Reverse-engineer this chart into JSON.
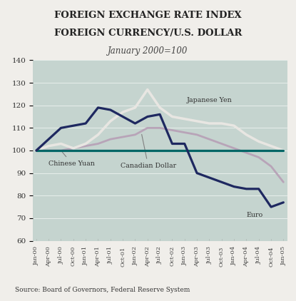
{
  "title_line1": "FOREIGN EXCHANGE RATE INDEX",
  "title_line2": "FOREIGN CURRENCY/U.S. DOLLAR",
  "subtitle": "January 2000=100",
  "source": "Source: Board of Governors, Federal Reserve System",
  "fig_bg": "#f0eeea",
  "plot_bg": "#c5d4cf",
  "ylim": [
    60,
    140
  ],
  "yticks": [
    60,
    70,
    80,
    90,
    100,
    110,
    120,
    130,
    140
  ],
  "xtick_labels": [
    "Jan-00",
    "Apr-00",
    "Jul-00",
    "Oct-00",
    "Jan-01",
    "Apr-01",
    "Jul-01",
    "Oct-01",
    "Jan-02",
    "Apr-02",
    "Jul-02",
    "Oct-02",
    "Jan-03",
    "Apr-03",
    "Jul-03",
    "Oct-03",
    "Jan-04",
    "Apr-04",
    "Jul-04",
    "Oct-04",
    "Jan-05"
  ],
  "chinese_yuan_color": "#006666",
  "japanese_yen_color": "#e8e6e2",
  "canadian_dollar_color": "#b8a4b8",
  "us_dollar_color": "#1e2860",
  "chinese_yuan": [
    100,
    100,
    100,
    100,
    100,
    100,
    100,
    100,
    100,
    100,
    100,
    100,
    100,
    100,
    100,
    100,
    100,
    100,
    100,
    100,
    100
  ],
  "japanese_yen": [
    100,
    102,
    103,
    101,
    103,
    107,
    113,
    117,
    119,
    127,
    119,
    115,
    114,
    113,
    112,
    112,
    111,
    107,
    104,
    102,
    100
  ],
  "canadian_dollar": [
    100,
    100,
    100,
    101,
    102,
    103,
    105,
    106,
    107,
    110,
    110,
    109,
    108,
    107,
    105,
    103,
    101,
    99,
    97,
    93,
    86
  ],
  "us_dollar": [
    100,
    105,
    110,
    111,
    112,
    119,
    118,
    115,
    112,
    115,
    116,
    103,
    103,
    90,
    88,
    86,
    84,
    83,
    83,
    75,
    77
  ],
  "n_points": 21
}
